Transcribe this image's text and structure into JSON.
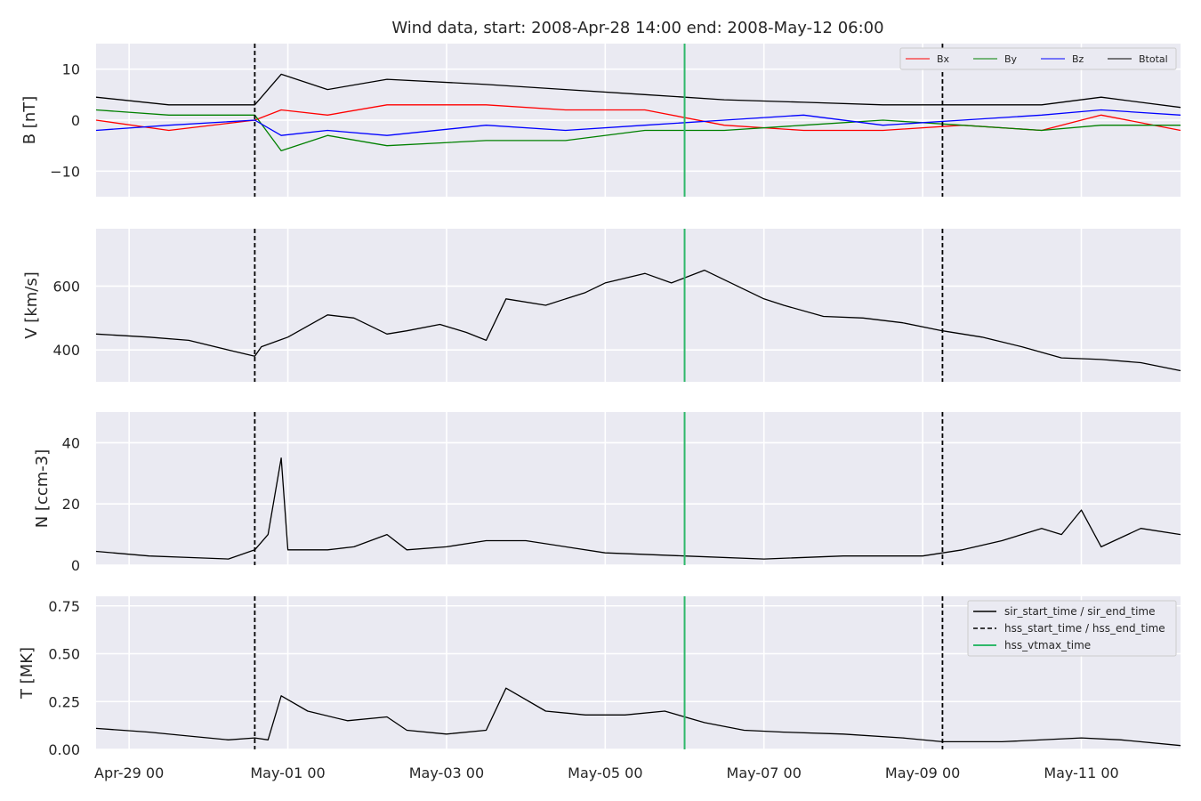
{
  "chart_data": {
    "type": "line",
    "title": "Wind data, start: 2008-Apr-28 14:00  end: 2008-May-12 06:00",
    "x_range": [
      "2008-04-28 14:00",
      "2008-05-12 06:00"
    ],
    "x_ticks": [
      {
        "t": "2008-04-29 00:00",
        "label": "Apr-29 00"
      },
      {
        "t": "2008-05-01 00:00",
        "label": "May-01 00"
      },
      {
        "t": "2008-05-03 00:00",
        "label": "May-03 00"
      },
      {
        "t": "2008-05-05 00:00",
        "label": "May-05 00"
      },
      {
        "t": "2008-05-07 00:00",
        "label": "May-07 00"
      },
      {
        "t": "2008-05-09 00:00",
        "label": "May-09 00"
      },
      {
        "t": "2008-05-11 00:00",
        "label": "May-11 00"
      }
    ],
    "grid": true,
    "markers": {
      "hss_start_time": "2008-04-30 14:00",
      "hss_end_time": "2008-05-09 06:00",
      "hss_vtmax_time": "2008-05-06 00:00"
    },
    "colors": {
      "Bx": "#ff0000",
      "By": "#008000",
      "Bz": "#0000ff",
      "Btotal": "#000000",
      "hss_vtmax": "#2fb86a",
      "background": "#eaeaf2"
    },
    "panels": [
      {
        "id": "B",
        "ylabel": "B [nT]",
        "ylim": [
          -15,
          15
        ],
        "yticks": [
          10,
          0,
          -10
        ],
        "legend": {
          "position": "top-right",
          "entries": [
            "Bx",
            "By",
            "Bz",
            "Btotal"
          ]
        },
        "series": [
          {
            "name": "Bx",
            "t": [
              "2008-04-28 14:00",
              "2008-04-29 12:00",
              "2008-04-30 14:00",
              "2008-04-30 22:00",
              "2008-05-01 12:00",
              "2008-05-02 06:00",
              "2008-05-03 12:00",
              "2008-05-04 12:00",
              "2008-05-05 12:00",
              "2008-05-06 12:00",
              "2008-05-07 12:00",
              "2008-05-08 12:00",
              "2008-05-09 12:00",
              "2008-05-10 12:00",
              "2008-05-11 06:00",
              "2008-05-12 06:00"
            ],
            "values": [
              0,
              -2,
              0,
              2,
              1,
              3,
              3,
              2,
              2,
              -1,
              -2,
              -2,
              -1,
              -2,
              1,
              -2
            ]
          },
          {
            "name": "By",
            "t": [
              "2008-04-28 14:00",
              "2008-04-29 12:00",
              "2008-04-30 14:00",
              "2008-04-30 22:00",
              "2008-05-01 12:00",
              "2008-05-02 06:00",
              "2008-05-03 12:00",
              "2008-05-04 12:00",
              "2008-05-05 12:00",
              "2008-05-06 12:00",
              "2008-05-07 12:00",
              "2008-05-08 12:00",
              "2008-05-09 12:00",
              "2008-05-10 12:00",
              "2008-05-11 06:00",
              "2008-05-12 06:00"
            ],
            "values": [
              2,
              1,
              1,
              -6,
              -3,
              -5,
              -4,
              -4,
              -2,
              -2,
              -1,
              0,
              -1,
              -2,
              -1,
              -1
            ]
          },
          {
            "name": "Bz",
            "t": [
              "2008-04-28 14:00",
              "2008-04-29 12:00",
              "2008-04-30 14:00",
              "2008-04-30 22:00",
              "2008-05-01 12:00",
              "2008-05-02 06:00",
              "2008-05-03 12:00",
              "2008-05-04 12:00",
              "2008-05-05 12:00",
              "2008-05-06 12:00",
              "2008-05-07 12:00",
              "2008-05-08 12:00",
              "2008-05-09 12:00",
              "2008-05-10 12:00",
              "2008-05-11 06:00",
              "2008-05-12 06:00"
            ],
            "values": [
              -2,
              -1,
              0,
              -3,
              -2,
              -3,
              -1,
              -2,
              -1,
              0,
              1,
              -1,
              0,
              1,
              2,
              1
            ]
          },
          {
            "name": "Btotal",
            "t": [
              "2008-04-28 14:00",
              "2008-04-29 12:00",
              "2008-04-30 14:00",
              "2008-04-30 22:00",
              "2008-05-01 12:00",
              "2008-05-02 06:00",
              "2008-05-03 12:00",
              "2008-05-04 12:00",
              "2008-05-05 12:00",
              "2008-05-06 12:00",
              "2008-05-07 12:00",
              "2008-05-08 12:00",
              "2008-05-09 12:00",
              "2008-05-10 12:00",
              "2008-05-11 06:00",
              "2008-05-12 06:00"
            ],
            "values": [
              4.5,
              3,
              3,
              9,
              6,
              8,
              7,
              6,
              5,
              4,
              3.5,
              3,
              3,
              3,
              4.5,
              2.5
            ]
          }
        ]
      },
      {
        "id": "V",
        "ylabel": "V [km/s]",
        "ylim": [
          300,
          780
        ],
        "yticks": [
          600,
          400
        ],
        "series": [
          {
            "name": "V",
            "t": [
              "2008-04-28 14:00",
              "2008-04-29 06:00",
              "2008-04-29 18:00",
              "2008-04-30 06:00",
              "2008-04-30 14:00",
              "2008-04-30 16:00",
              "2008-05-01 00:00",
              "2008-05-01 12:00",
              "2008-05-01 20:00",
              "2008-05-02 06:00",
              "2008-05-02 12:00",
              "2008-05-02 22:00",
              "2008-05-03 06:00",
              "2008-05-03 12:00",
              "2008-05-03 18:00",
              "2008-05-04 06:00",
              "2008-05-04 18:00",
              "2008-05-05 00:00",
              "2008-05-05 12:00",
              "2008-05-05 20:00",
              "2008-05-06 06:00",
              "2008-05-06 12:00",
              "2008-05-07 00:00",
              "2008-05-07 06:00",
              "2008-05-07 18:00",
              "2008-05-08 06:00",
              "2008-05-08 18:00",
              "2008-05-09 06:00",
              "2008-05-09 18:00",
              "2008-05-10 06:00",
              "2008-05-10 18:00",
              "2008-05-11 06:00",
              "2008-05-11 18:00",
              "2008-05-12 06:00"
            ],
            "values": [
              450,
              440,
              430,
              400,
              380,
              410,
              440,
              510,
              500,
              450,
              460,
              480,
              455,
              430,
              560,
              540,
              580,
              610,
              640,
              610,
              650,
              620,
              560,
              540,
              505,
              500,
              485,
              460,
              440,
              410,
              375,
              370,
              360,
              335
            ]
          }
        ]
      },
      {
        "id": "N",
        "ylabel": "N [ccm-3]",
        "ylim": [
          0,
          50
        ],
        "yticks": [
          40,
          20,
          0
        ],
        "series": [
          {
            "name": "N",
            "t": [
              "2008-04-28 14:00",
              "2008-04-29 06:00",
              "2008-04-29 18:00",
              "2008-04-30 06:00",
              "2008-04-30 14:00",
              "2008-04-30 18:00",
              "2008-04-30 22:00",
              "2008-05-01 00:00",
              "2008-05-01 12:00",
              "2008-05-01 20:00",
              "2008-05-02 06:00",
              "2008-05-02 12:00",
              "2008-05-03 00:00",
              "2008-05-03 12:00",
              "2008-05-04 00:00",
              "2008-05-05 00:00",
              "2008-05-06 00:00",
              "2008-05-07 00:00",
              "2008-05-08 00:00",
              "2008-05-09 00:00",
              "2008-05-09 12:00",
              "2008-05-10 00:00",
              "2008-05-10 12:00",
              "2008-05-10 18:00",
              "2008-05-11 00:00",
              "2008-05-11 06:00",
              "2008-05-11 18:00",
              "2008-05-12 06:00"
            ],
            "values": [
              4.5,
              3,
              2.5,
              2,
              5,
              10,
              35,
              5,
              5,
              6,
              10,
              5,
              6,
              8,
              8,
              4,
              3,
              2,
              3,
              3,
              5,
              8,
              12,
              10,
              18,
              6,
              12,
              10
            ]
          }
        ]
      },
      {
        "id": "T",
        "ylabel": "T [MK]",
        "ylim": [
          0,
          0.8
        ],
        "yticks": [
          0.75,
          0.5,
          0.25,
          0.0
        ],
        "legend": {
          "position": "top-right",
          "entries": [
            "sir_start_time / sir_end_time",
            "hss_start_time / hss_end_time",
            "hss_vtmax_time"
          ]
        },
        "series": [
          {
            "name": "T",
            "t": [
              "2008-04-28 14:00",
              "2008-04-29 06:00",
              "2008-04-29 18:00",
              "2008-04-30 06:00",
              "2008-04-30 14:00",
              "2008-04-30 18:00",
              "2008-04-30 22:00",
              "2008-05-01 06:00",
              "2008-05-01 18:00",
              "2008-05-02 06:00",
              "2008-05-02 12:00",
              "2008-05-03 00:00",
              "2008-05-03 12:00",
              "2008-05-03 18:00",
              "2008-05-04 06:00",
              "2008-05-04 18:00",
              "2008-05-05 06:00",
              "2008-05-05 18:00",
              "2008-05-06 06:00",
              "2008-05-06 18:00",
              "2008-05-07 06:00",
              "2008-05-08 00:00",
              "2008-05-08 18:00",
              "2008-05-09 06:00",
              "2008-05-10 00:00",
              "2008-05-11 00:00",
              "2008-05-11 12:00",
              "2008-05-12 06:00"
            ],
            "values": [
              0.11,
              0.09,
              0.07,
              0.05,
              0.06,
              0.05,
              0.28,
              0.2,
              0.15,
              0.17,
              0.1,
              0.08,
              0.1,
              0.32,
              0.2,
              0.18,
              0.18,
              0.2,
              0.14,
              0.1,
              0.09,
              0.08,
              0.06,
              0.04,
              0.04,
              0.06,
              0.05,
              0.02
            ]
          }
        ]
      }
    ]
  }
}
